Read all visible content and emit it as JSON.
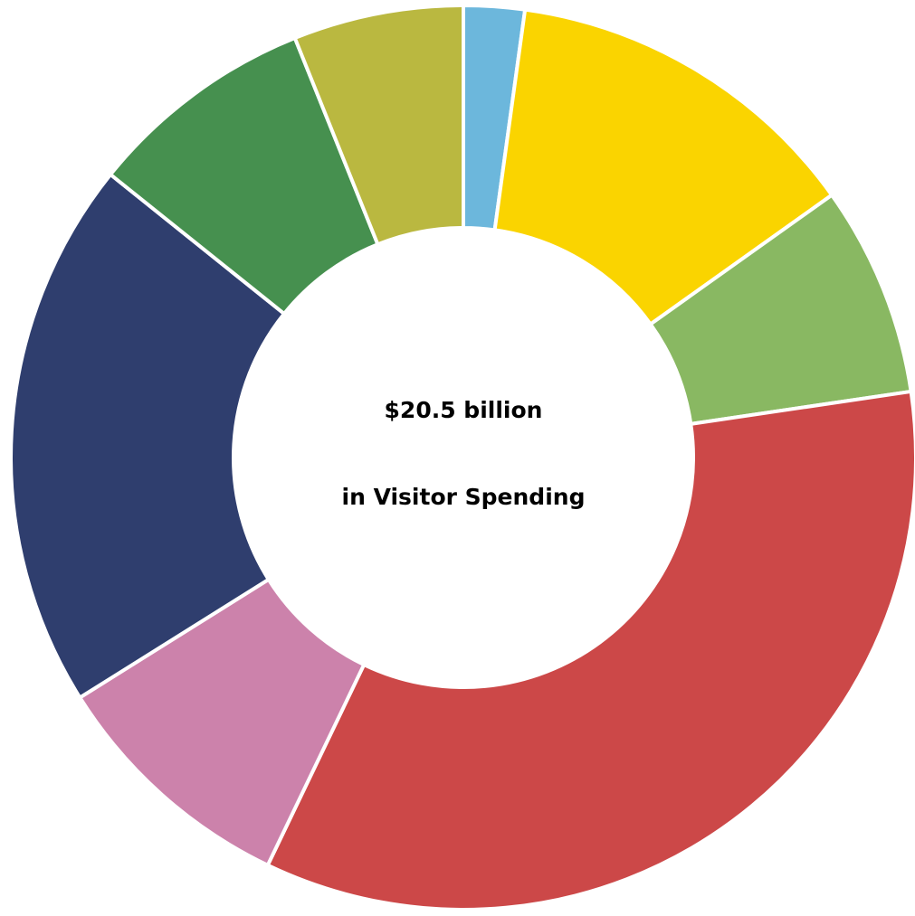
{
  "chart_data": {
    "type": "pie",
    "title": "",
    "center_label": {
      "line1": "$20.5 billion",
      "line2": "in Visitor Spending"
    },
    "slices": [
      {
        "value": 2.4,
        "color": "#6cb7dc"
      },
      {
        "value": 14.3,
        "color": "#fad400"
      },
      {
        "value": 8.3,
        "color": "#89b862"
      },
      {
        "value": 38.0,
        "color": "#cc4848"
      },
      {
        "value": 9.9,
        "color": "#cc82ab"
      },
      {
        "value": 21.7,
        "color": "#2f3e6e"
      },
      {
        "value": 9.0,
        "color": "#46904f"
      },
      {
        "value": 6.7,
        "color": "#bab840"
      }
    ],
    "start_angle_deg": 0,
    "direction": "clockwise",
    "hole": true
  }
}
